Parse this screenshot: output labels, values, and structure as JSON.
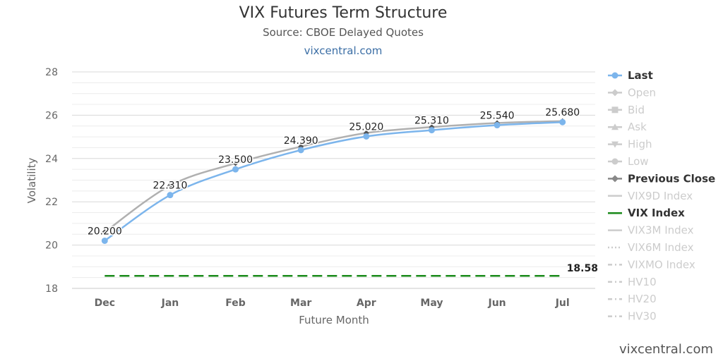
{
  "chart_data": {
    "type": "line",
    "title": "VIX Futures Term Structure",
    "subtitle": "Source: CBOE Delayed Quotes",
    "link_text": "vixcentral.com",
    "watermark": "vixcentral.com",
    "xlabel": "Future Month",
    "ylabel": "Volatility",
    "categories": [
      "Dec",
      "Jan",
      "Feb",
      "Mar",
      "Apr",
      "May",
      "Jun",
      "Jul"
    ],
    "ylim": [
      18,
      28
    ],
    "yticks": [
      18,
      20,
      22,
      24,
      26,
      28
    ],
    "grid": true,
    "legend_position": "right",
    "series": [
      {
        "name": "Last",
        "values": [
          20.2,
          22.31,
          23.5,
          24.39,
          25.02,
          25.31,
          25.54,
          25.68
        ],
        "data_labels": [
          "20.200",
          "22.310",
          "23.500",
          "24.390",
          "25.020",
          "25.310",
          "25.540",
          "25.680"
        ],
        "color": "#7cb5ec",
        "marker": "circle"
      },
      {
        "name": "Previous Close",
        "values": [
          20.6,
          22.75,
          23.78,
          24.55,
          25.18,
          25.45,
          25.64,
          25.73
        ],
        "color": "#b0b0b0",
        "marker_color": "#555555",
        "marker": "diamond"
      },
      {
        "name": "VIX Index",
        "values": [
          18.58,
          18.58,
          18.58,
          18.58,
          18.58,
          18.58,
          18.58,
          18.58
        ],
        "end_label": "18.58",
        "color": "#1a8a1a",
        "dash": "dashed"
      }
    ],
    "legend": [
      {
        "name": "Last",
        "active": true,
        "symbol": "circle",
        "color": "#7cb5ec"
      },
      {
        "name": "Open",
        "active": false,
        "symbol": "diamond",
        "color": "#cccccc"
      },
      {
        "name": "Bid",
        "active": false,
        "symbol": "square",
        "color": "#cccccc"
      },
      {
        "name": "Ask",
        "active": false,
        "symbol": "triangle",
        "color": "#cccccc"
      },
      {
        "name": "High",
        "active": false,
        "symbol": "triangle-down",
        "color": "#cccccc"
      },
      {
        "name": "Low",
        "active": false,
        "symbol": "circle",
        "color": "#cccccc"
      },
      {
        "name": "Previous Close",
        "active": true,
        "symbol": "diamond",
        "color": "#888888"
      },
      {
        "name": "VIX9D Index",
        "active": false,
        "symbol": "line",
        "color": "#cccccc"
      },
      {
        "name": "VIX Index",
        "active": true,
        "symbol": "line",
        "color": "#1a8a1a"
      },
      {
        "name": "VIX3M Index",
        "active": false,
        "symbol": "line",
        "color": "#cccccc"
      },
      {
        "name": "VIX6M Index",
        "active": false,
        "symbol": "dotted",
        "color": "#cccccc"
      },
      {
        "name": "VIXMO Index",
        "active": false,
        "symbol": "dashdot",
        "color": "#cccccc"
      },
      {
        "name": "HV10",
        "active": false,
        "symbol": "dashdot",
        "color": "#cccccc"
      },
      {
        "name": "HV20",
        "active": false,
        "symbol": "dashdot",
        "color": "#cccccc"
      },
      {
        "name": "HV30",
        "active": false,
        "symbol": "dashdot",
        "color": "#cccccc"
      }
    ]
  }
}
